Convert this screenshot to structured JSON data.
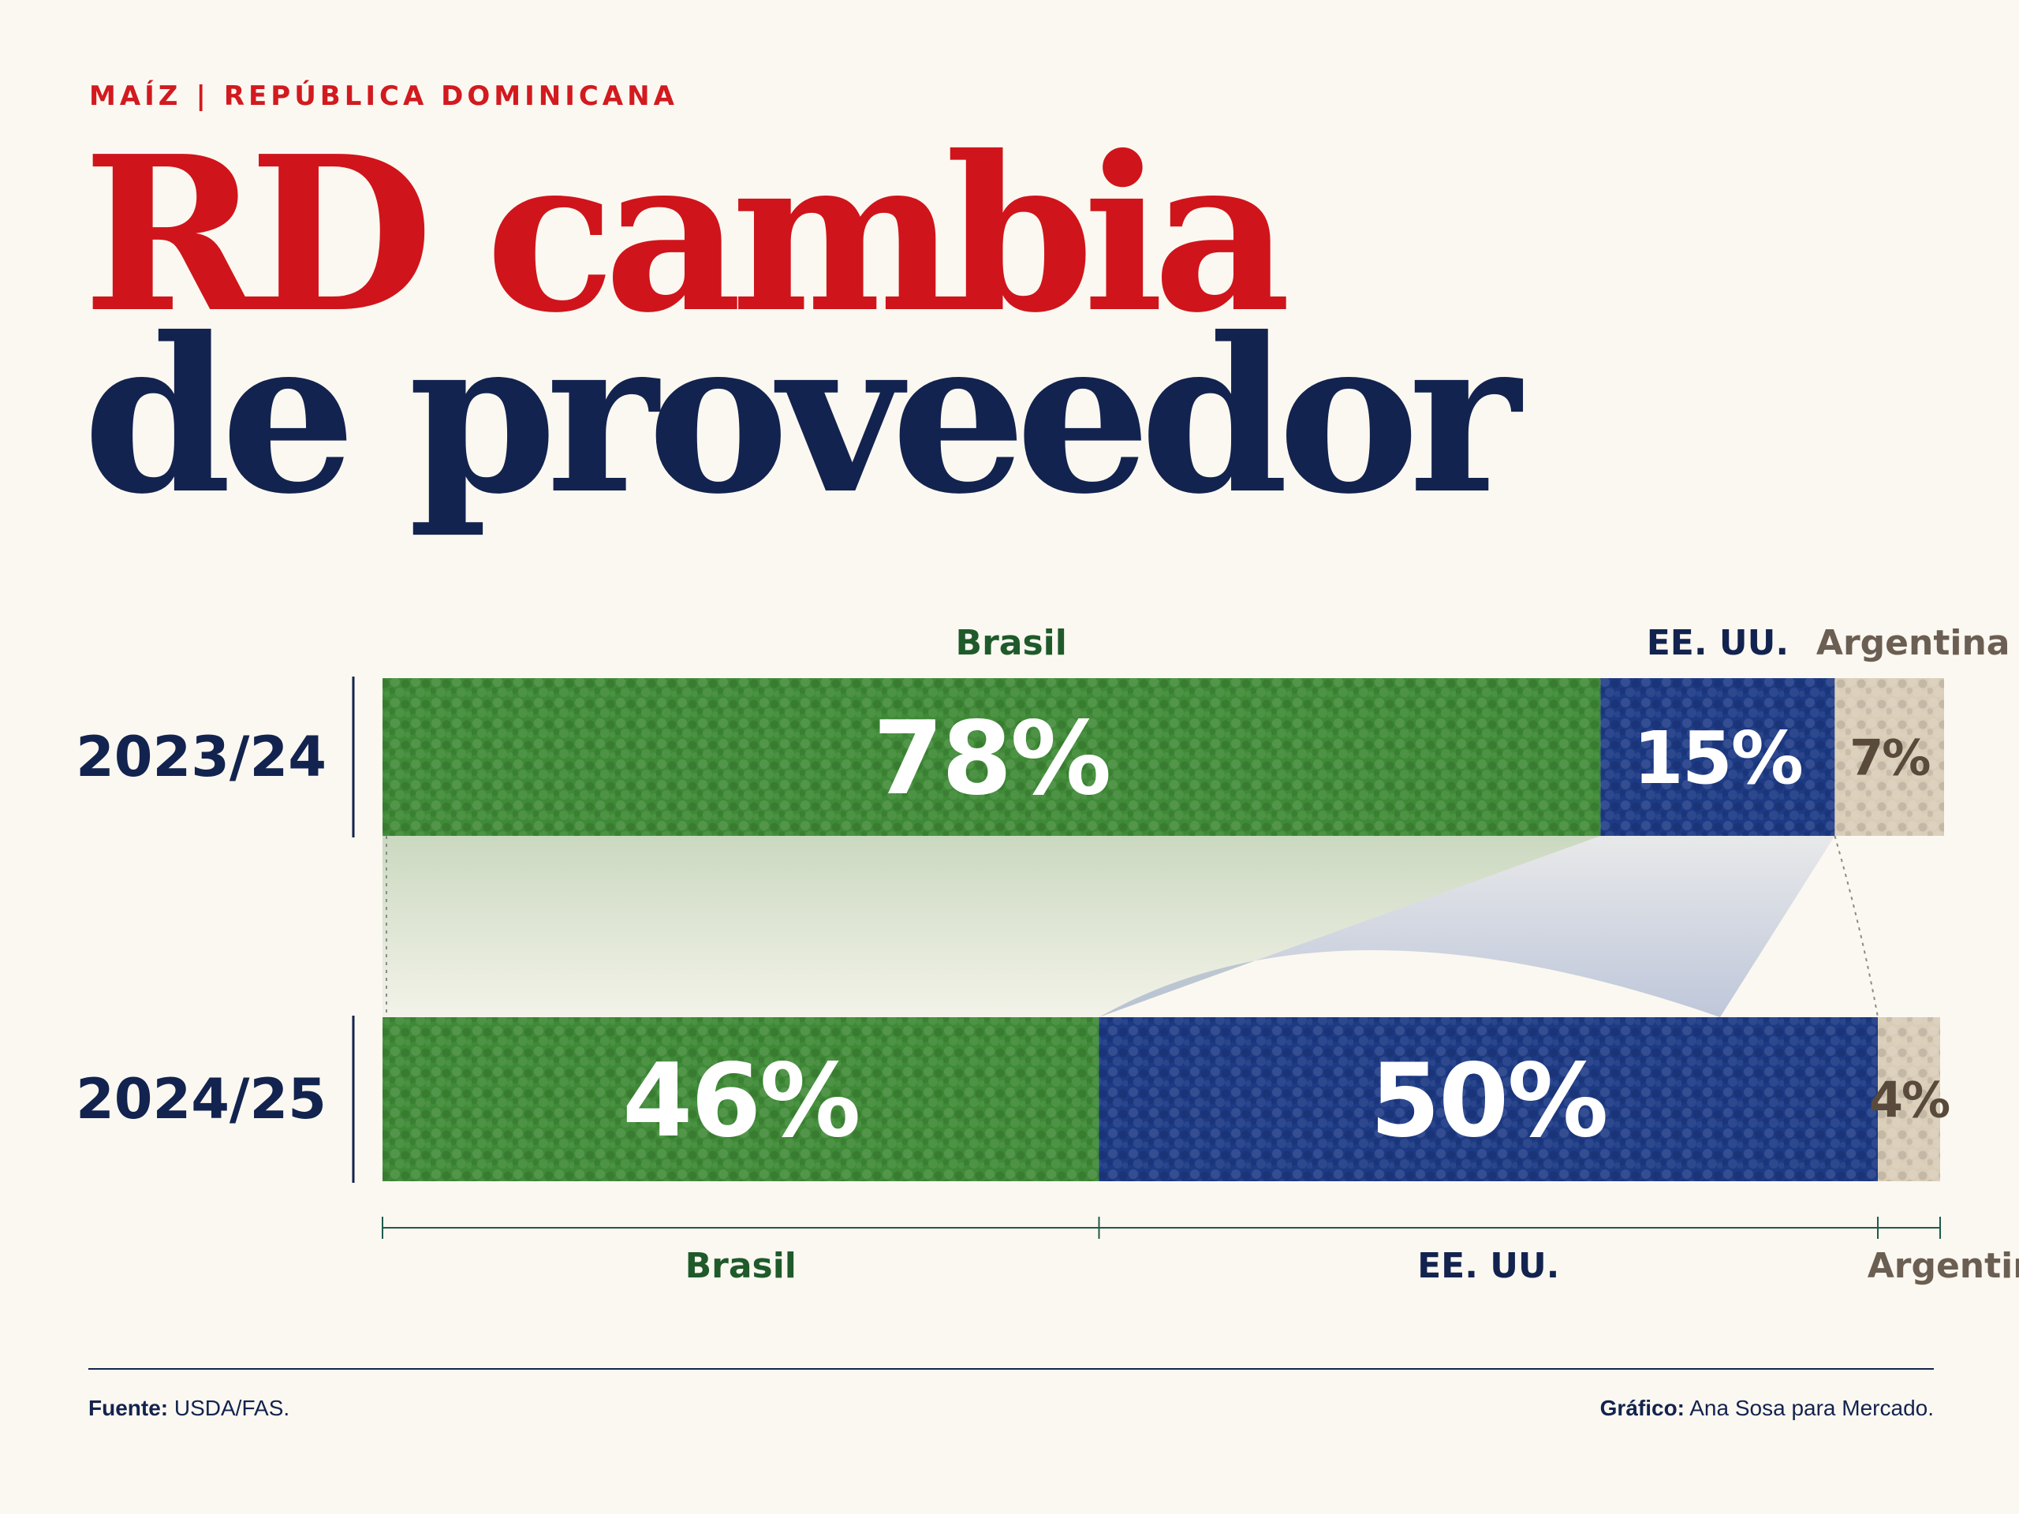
{
  "header": {
    "kicker_topic": "MAÍZ",
    "kicker_separator": "|",
    "kicker_country": "REPÚBLICA DOMINICANA",
    "title_line_1": "RD cambia",
    "title_line_2": "de proveedor"
  },
  "chart_data": {
    "type": "bar",
    "stacked": true,
    "orientation": "horizontal",
    "unit": "%",
    "categories": [
      "2023/24",
      "2024/25"
    ],
    "series": [
      {
        "name": "Brasil",
        "values": [
          78,
          46
        ],
        "color": "#3f8a37"
      },
      {
        "name": "EE. UU.",
        "values": [
          15,
          50
        ],
        "color": "#1d3a84"
      },
      {
        "name": "Argentina",
        "values": [
          7,
          4
        ],
        "color": "#d9cdb8"
      }
    ],
    "value_labels": [
      [
        "78%",
        "15%",
        "7%"
      ],
      [
        "46%",
        "50%",
        "4%"
      ]
    ],
    "label_colors": {
      "Brasil": "#1f5a2a",
      "EE. UU.": "#13234f",
      "Argentina": "#6b5e52",
      "Argentina_value": "#5a4a3c",
      "year": "#13234f"
    },
    "xlim": [
      0,
      100
    ]
  },
  "footer": {
    "source_label": "Fuente:",
    "source_text": " USDA/FAS.",
    "credit_label": "Gráfico:",
    "credit_text": " Ana Sosa para Mercado."
  }
}
